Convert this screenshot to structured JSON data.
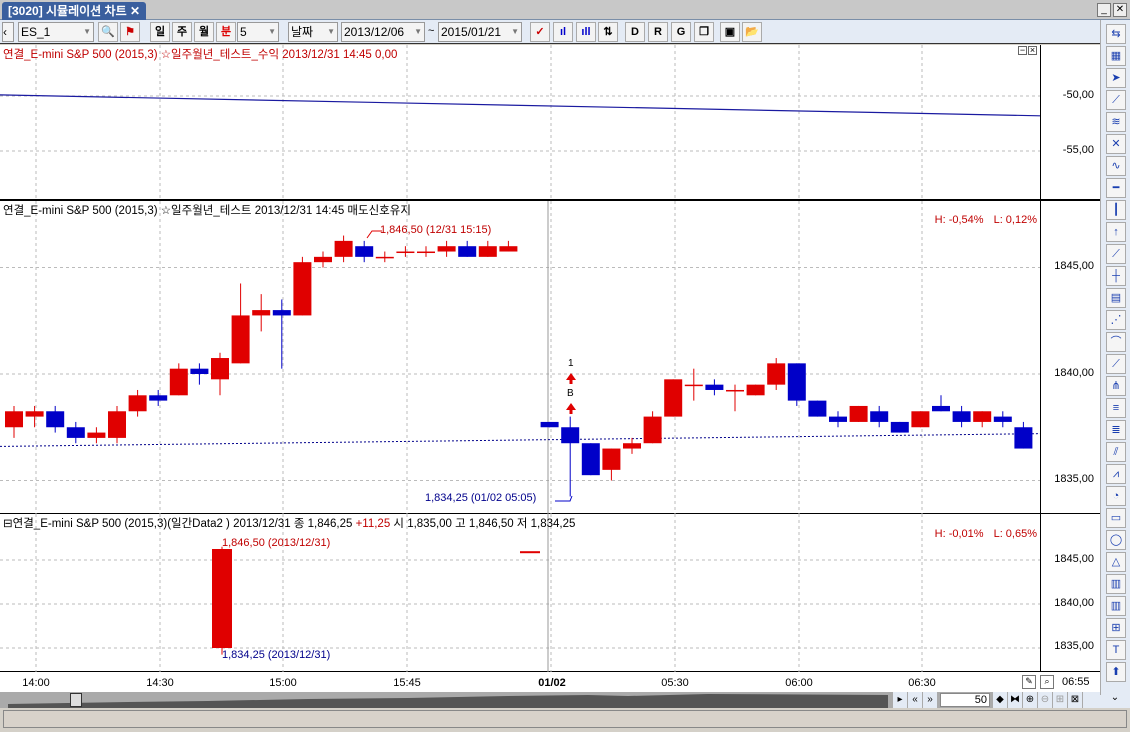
{
  "window": {
    "tab_title": "[3020] 시뮬레이션 차트",
    "close": "✕",
    "minimize": "_",
    "win_close": "✕"
  },
  "toolbar": {
    "symbol": "ES_1",
    "period_day": "일",
    "period_week": "주",
    "period_month": "월",
    "period_min": "분",
    "interval": "5",
    "date_mode": "날짜",
    "date_from": "2013/12/06",
    "tilde": "~",
    "date_to": "2015/01/21"
  },
  "colors": {
    "up": "#e00000",
    "down": "#0000c8",
    "ma": "#00008b",
    "profit_line": "#1a1aa0"
  },
  "pane_profit": {
    "title": "연결_E-mini S&P 500 (2015,3) ☆일주월년_테스트_수익 2013/12/31 14:45 0,00",
    "axis_ticks": [
      "-50,00",
      "-55,00"
    ],
    "tick_values": [
      -50,
      -55
    ],
    "line_start": -49.9,
    "line_end": -51.8
  },
  "pane_main": {
    "title": "연결_E-mini S&P 500 (2015,3) ☆일주월년_테스트  2013/12/31 14:45 매도신호유지",
    "hl_h": "H: -0,54%",
    "hl_l": "L: 0,12%",
    "axis_ticks": [
      "1845,00",
      "1840,00",
      "1835,00"
    ],
    "tick_values": [
      1845,
      1840,
      1835
    ],
    "high_label": "1,846,50 (12/31 15:15)",
    "low_label": "1,834,25 (01/02 05:05)",
    "signal_count": "1",
    "signal_label": "B",
    "ma_start": 1836.6,
    "ma_end": 1837.2,
    "candles": [
      [
        1837.5,
        1838.5,
        1837,
        1838.25
      ],
      [
        1838,
        1838.5,
        1837.5,
        1838.25
      ],
      [
        1838.25,
        1838.5,
        1837.25,
        1837.5
      ],
      [
        1837.5,
        1837.75,
        1836.75,
        1837
      ],
      [
        1837,
        1837.5,
        1836.75,
        1837.25
      ],
      [
        1837,
        1838.5,
        1836.75,
        1838.25
      ],
      [
        1838.25,
        1839.25,
        1838,
        1839
      ],
      [
        1839,
        1839.25,
        1838.5,
        1838.75
      ],
      [
        1839,
        1840.5,
        1839,
        1840.25
      ],
      [
        1840.25,
        1840.5,
        1839.5,
        1840
      ],
      [
        1839.75,
        1841,
        1839,
        1840.75
      ],
      [
        1840.5,
        1844.25,
        1840.5,
        1842.75
      ],
      [
        1842.75,
        1843.75,
        1842,
        1843
      ],
      [
        1843,
        1843.5,
        1840.25,
        1842.75
      ],
      [
        1842.75,
        1845.5,
        1842.75,
        1845.25
      ],
      [
        1845.25,
        1845.75,
        1845,
        1845.5
      ],
      [
        1845.5,
        1846.5,
        1845.25,
        1846.25
      ],
      [
        1846,
        1846.25,
        1845.25,
        1845.5
      ],
      [
        1845.5,
        1845.75,
        1845.25,
        1845.5
      ],
      [
        1845.75,
        1846,
        1845.5,
        1845.75
      ],
      [
        1845.75,
        1846,
        1845.5,
        1845.75
      ],
      [
        1845.75,
        1846.25,
        1845.5,
        1846
      ],
      [
        1846,
        1846.25,
        1845.5,
        1845.5
      ],
      [
        1845.5,
        1846.25,
        1845.5,
        1846
      ],
      [
        1845.75,
        1846.25,
        1845.75,
        1846
      ],
      null,
      [
        1837.75,
        1837.75,
        1837.5,
        1837.5
      ],
      [
        1837.5,
        1838,
        1834.25,
        1836.75
      ],
      [
        1836.75,
        1836.75,
        1835.25,
        1835.25
      ],
      [
        1835.5,
        1836.5,
        1835,
        1836.5
      ],
      [
        1836.5,
        1837,
        1836.25,
        1836.75
      ],
      [
        1836.75,
        1838.25,
        1836.75,
        1838
      ],
      [
        1838,
        1839.75,
        1838,
        1839.75
      ],
      [
        1839.5,
        1840.25,
        1838.75,
        1839.5
      ],
      [
        1839.5,
        1839.75,
        1839,
        1839.25
      ],
      [
        1839.25,
        1839.5,
        1838.25,
        1839.25
      ],
      [
        1839,
        1839.5,
        1839,
        1839.5
      ],
      [
        1839.5,
        1840.75,
        1839.25,
        1840.5
      ],
      [
        1840.5,
        1840.5,
        1838.5,
        1838.75
      ],
      [
        1838.75,
        1838.75,
        1838,
        1838
      ],
      [
        1838,
        1838.25,
        1837.5,
        1837.75
      ],
      [
        1837.75,
        1838.5,
        1837.75,
        1838.5
      ],
      [
        1838.25,
        1838.5,
        1837.5,
        1837.75
      ],
      [
        1837.75,
        1837.75,
        1837.25,
        1837.25
      ],
      [
        1837.5,
        1838.25,
        1837.5,
        1838.25
      ],
      [
        1838.5,
        1839,
        1838.25,
        1838.25
      ],
      [
        1838.25,
        1838.5,
        1837.5,
        1837.75
      ],
      [
        1837.75,
        1838.25,
        1837.5,
        1838.25
      ],
      [
        1838,
        1838.25,
        1837.5,
        1837.75
      ],
      [
        1837.5,
        1837.75,
        1836.5,
        1836.5
      ]
    ]
  },
  "pane_daily": {
    "title_prefix": "연결_E-mini S&P 500 (2015,3)(일간Data2 ) 2013/12/31   종 1,846,25 ",
    "change": "+11,25",
    "title_suffix": "  시 1,835,00 고 1,846,50 저 1,834,25",
    "hl_h": "H: -0,01%",
    "hl_l": "L: 0,65%",
    "axis_ticks": [
      "1845,00",
      "1840,00",
      "1835,00"
    ],
    "tick_values": [
      1845,
      1840,
      1835
    ],
    "high_label": "1,846,50 (2013/12/31)",
    "low_label": "1,834,25 (2013/12/31)",
    "candles": [
      [
        1835,
        1846.5,
        1834.25,
        1846.25
      ],
      [
        1846,
        1846,
        1846,
        1846
      ]
    ]
  },
  "time_axis": [
    "14:00",
    "14:30",
    "15:00",
    "15:45",
    "01/02",
    "05:30",
    "06:00",
    "06:30"
  ],
  "last_time": "06:55",
  "zoom_count": "50"
}
